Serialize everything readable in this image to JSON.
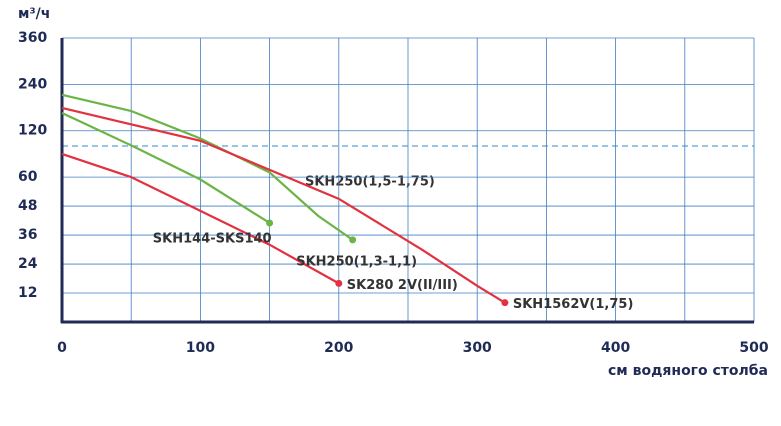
{
  "chart_data": {
    "type": "line",
    "y_axis_title": "м³/ч",
    "x_axis_title": "см водяного столба",
    "xlim": [
      0,
      500
    ],
    "xticks": [
      0,
      100,
      200,
      300,
      400,
      500
    ],
    "ylim": [
      0,
      360
    ],
    "yticks": [
      12,
      24,
      36,
      48,
      60,
      120,
      240,
      360
    ],
    "grid": true,
    "series": [
      {
        "name": "SK280 2V(II/III)",
        "color": "#e2313f",
        "x": [
          0,
          50,
          100,
          150,
          200
        ],
        "values": [
          90,
          60,
          46,
          32,
          16
        ]
      },
      {
        "name": "SKH144-SKS140",
        "color": "#6cb445",
        "x": [
          0,
          50,
          100,
          150
        ],
        "values": [
          166,
          101,
          59,
          41
        ]
      },
      {
        "name": "SKH250(1,3-1,1)",
        "color": "#6cb445",
        "x": [
          0,
          50,
          100,
          150,
          185,
          210
        ],
        "values": [
          213,
          171,
          110,
          66,
          44,
          34
        ]
      },
      {
        "name": "SKH1562V(1,75)",
        "color": "#e2313f",
        "x": [
          0,
          100,
          200,
          260,
          300,
          320
        ],
        "values": [
          179,
          107,
          51,
          30,
          15,
          8
        ]
      }
    ],
    "annotations": [
      "SKH250(1,5-1,75)"
    ]
  }
}
